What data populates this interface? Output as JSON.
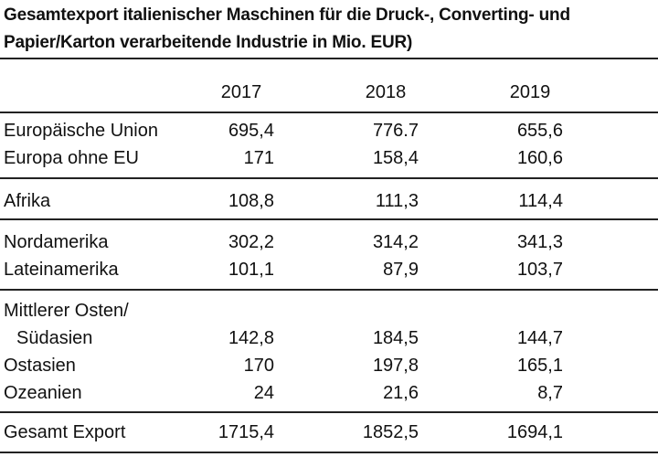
{
  "table": {
    "title": "Gesamtexport italienischer Maschinen für die Druck-, Converting- und Papier/Karton verarbeitende Industrie  in Mio. EUR)",
    "years": [
      "2017",
      "2018",
      "2019"
    ],
    "rows": [
      {
        "label": "Europäische Union",
        "values": [
          "695,4",
          "776.7",
          "655,6"
        ]
      },
      {
        "label": "Europa ohne EU",
        "values": [
          "171",
          "158,4",
          "160,6"
        ]
      },
      {
        "label": "Afrika",
        "values": [
          "108,8",
          "111,3",
          "114,4"
        ]
      },
      {
        "label": "Nordamerika",
        "values": [
          "302,2",
          "314,2",
          "341,3"
        ]
      },
      {
        "label": "Lateinamerika",
        "values": [
          "101,1",
          "87,9",
          "103,7"
        ]
      },
      {
        "label": "Mittlerer Osten/",
        "values": [
          "",
          "",
          ""
        ]
      },
      {
        "label": "Südasien",
        "values": [
          "142,8",
          "184,5",
          "144,7"
        ]
      },
      {
        "label": "Ostasien",
        "values": [
          "170",
          "197,8",
          "165,1"
        ]
      },
      {
        "label": "Ozeanien",
        "values": [
          "24",
          "21,6",
          "8,7"
        ]
      },
      {
        "label": "Gesamt Export",
        "values": [
          "1715,4",
          "1852,5",
          "1694,1"
        ]
      }
    ]
  }
}
